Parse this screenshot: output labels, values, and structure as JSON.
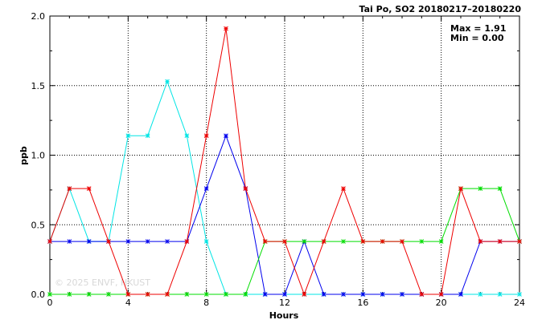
{
  "chart_data": {
    "type": "line",
    "title": "Tai Po, SO2 20180217–20180220",
    "xlabel": "Hours",
    "ylabel": "ppb",
    "xlim": [
      0,
      24
    ],
    "ylim": [
      0,
      2.0
    ],
    "xticks": [
      0,
      4,
      8,
      12,
      16,
      20,
      24
    ],
    "yticks": [
      "0.0",
      "0.5",
      "1.0",
      "1.5",
      "2.0"
    ],
    "grid": true,
    "stats": {
      "max": "Max = 1.91",
      "min": "Min = 0.00"
    },
    "watermark": "© 2025  ENVF, HKUST",
    "x": [
      0,
      1,
      2,
      3,
      4,
      5,
      6,
      7,
      8,
      9,
      10,
      11,
      12,
      13,
      14,
      15,
      16,
      17,
      18,
      19,
      20,
      21,
      22,
      23,
      24
    ],
    "series": [
      {
        "color": "#00e5e5",
        "values": [
          0.38,
          0.76,
          0.38,
          0.38,
          1.14,
          1.14,
          1.53,
          1.14,
          0.38,
          0.0,
          0.0,
          0.0,
          0.0,
          0.0,
          0.0,
          0.0,
          0.0,
          0.0,
          0.0,
          0.0,
          0.0,
          0.0,
          0.0,
          0.0,
          0.0
        ]
      },
      {
        "color": "#0000ee",
        "values": [
          0.38,
          0.38,
          0.38,
          0.38,
          0.38,
          0.38,
          0.38,
          0.38,
          0.76,
          1.14,
          0.76,
          0.0,
          0.0,
          0.38,
          0.0,
          0.0,
          0.0,
          0.0,
          0.0,
          0.0,
          0.0,
          0.0,
          0.38,
          0.38,
          0.38
        ]
      },
      {
        "color": "#00dd00",
        "values": [
          0.0,
          0.0,
          0.0,
          0.0,
          0.0,
          0.0,
          0.0,
          0.0,
          0.0,
          0.0,
          0.0,
          0.38,
          0.38,
          0.38,
          0.38,
          0.38,
          0.38,
          0.38,
          0.38,
          0.38,
          0.38,
          0.76,
          0.76,
          0.76,
          0.38
        ]
      },
      {
        "color": "#ee0000",
        "values": [
          0.38,
          0.76,
          0.76,
          0.38,
          0.0,
          0.0,
          0.0,
          0.38,
          1.14,
          1.91,
          0.76,
          0.38,
          0.38,
          0.0,
          0.38,
          0.76,
          0.38,
          0.38,
          0.38,
          0.0,
          0.0,
          0.76,
          0.38,
          0.38,
          0.38
        ]
      }
    ]
  }
}
